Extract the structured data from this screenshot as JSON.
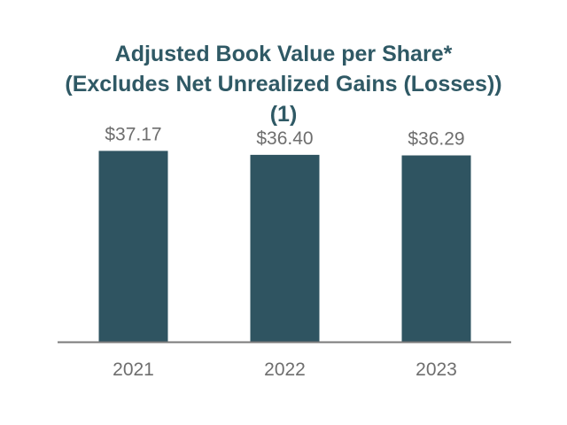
{
  "chart_data": {
    "type": "bar",
    "title": "Adjusted Book Value per Share* (Excludes Net Unrealized Gains (Losses)) (1)",
    "categories": [
      "2021",
      "2022",
      "2023"
    ],
    "values": [
      37.17,
      36.4,
      36.29
    ],
    "value_labels": [
      "$37.17",
      "$36.40",
      "$36.29"
    ],
    "xlabel": "",
    "ylabel": "",
    "ylim": [
      0,
      40
    ],
    "grid": false,
    "legend": "none",
    "colors": {
      "bar": "#2f5461",
      "axis": "#7a7a7a",
      "title": "#2f5965",
      "text": "#6e6e6e"
    }
  }
}
